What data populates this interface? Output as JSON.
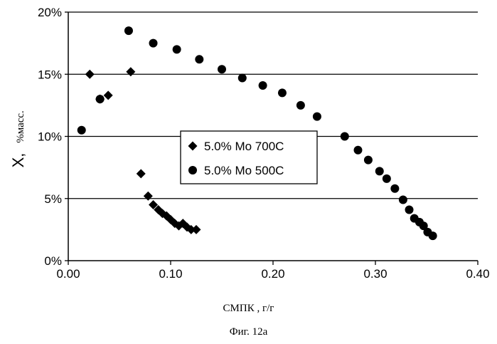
{
  "chart_data": {
    "type": "scatter",
    "ylabel": "X,",
    "ylabel_unit": "%масс.",
    "xlabel": "СМПК , г/г",
    "caption": "Фиг. 12а",
    "xlim": [
      0,
      0.4
    ],
    "ylim": [
      0,
      20
    ],
    "x_ticks": [
      "0.00",
      "0.10",
      "0.20",
      "0.30",
      "0.40"
    ],
    "y_ticks": [
      "0%",
      "5%",
      "10%",
      "15%",
      "20%"
    ],
    "x_tick_values": [
      0,
      0.1,
      0.2,
      0.3,
      0.4
    ],
    "y_tick_values": [
      0,
      5,
      10,
      15,
      20
    ],
    "grid": "horizontal",
    "legend_position": "center",
    "series": [
      {
        "name": "5.0% Mo 700C",
        "marker": "diamond",
        "color": "#000000",
        "points": [
          [
            0.021,
            15.0
          ],
          [
            0.031,
            13.0
          ],
          [
            0.039,
            13.3
          ],
          [
            0.061,
            15.2
          ],
          [
            0.071,
            7.0
          ],
          [
            0.078,
            5.2
          ],
          [
            0.083,
            4.5
          ],
          [
            0.088,
            4.1
          ],
          [
            0.092,
            3.8
          ],
          [
            0.096,
            3.6
          ],
          [
            0.1,
            3.3
          ],
          [
            0.104,
            3.0
          ],
          [
            0.108,
            2.8
          ],
          [
            0.112,
            3.0
          ],
          [
            0.116,
            2.7
          ],
          [
            0.12,
            2.5
          ],
          [
            0.125,
            2.5
          ]
        ]
      },
      {
        "name": "5.0% Mo 500C",
        "marker": "circle",
        "color": "#000000",
        "points": [
          [
            0.013,
            10.5
          ],
          [
            0.031,
            13.0
          ],
          [
            0.059,
            18.5
          ],
          [
            0.083,
            17.5
          ],
          [
            0.106,
            17.0
          ],
          [
            0.128,
            16.2
          ],
          [
            0.15,
            15.4
          ],
          [
            0.17,
            14.7
          ],
          [
            0.19,
            14.1
          ],
          [
            0.209,
            13.5
          ],
          [
            0.227,
            12.5
          ],
          [
            0.243,
            11.6
          ],
          [
            0.27,
            10.0
          ],
          [
            0.283,
            8.9
          ],
          [
            0.293,
            8.1
          ],
          [
            0.304,
            7.2
          ],
          [
            0.311,
            6.6
          ],
          [
            0.319,
            5.8
          ],
          [
            0.327,
            4.9
          ],
          [
            0.333,
            4.1
          ],
          [
            0.338,
            3.4
          ],
          [
            0.343,
            3.1
          ],
          [
            0.347,
            2.8
          ],
          [
            0.351,
            2.3
          ],
          [
            0.356,
            2.0
          ]
        ]
      }
    ]
  }
}
